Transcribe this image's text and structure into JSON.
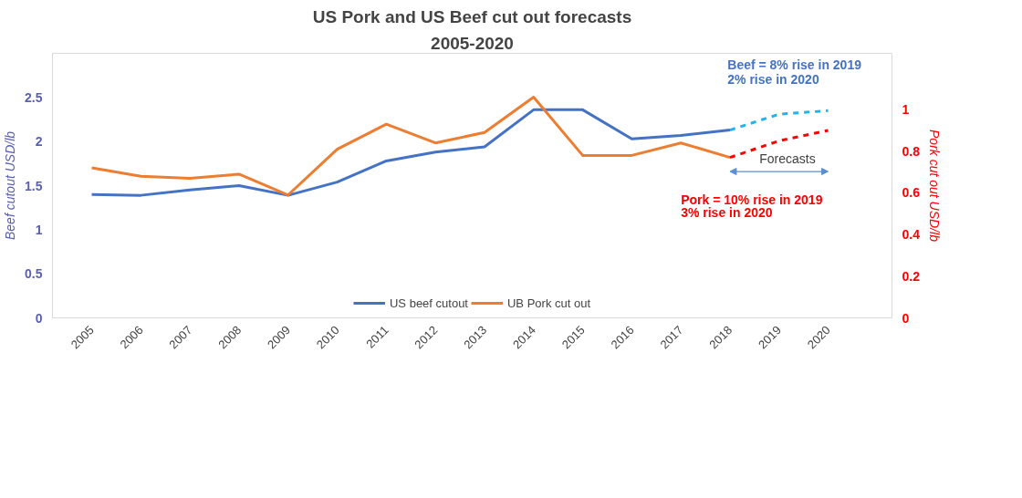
{
  "chart_data": {
    "type": "line",
    "title": "US Pork and US Beef cut out forecasts",
    "subtitle": "2005-2020",
    "ylabel": "Beef cutout USD/lb",
    "y2label": "Pork cut out USD/lb",
    "categories": [
      "2005",
      "2006",
      "2007",
      "2008",
      "2009",
      "2010",
      "2011",
      "2012",
      "2013",
      "2014",
      "2015",
      "2016",
      "2017",
      "2018",
      "2019",
      "2020"
    ],
    "series": [
      {
        "name": "US beef cutout",
        "color": "#4472c4",
        "values": [
          1.4,
          1.39,
          1.45,
          1.5,
          1.39,
          1.54,
          1.78,
          1.88,
          1.94,
          2.36,
          2.36,
          2.03,
          2.07,
          2.13,
          null,
          null
        ]
      },
      {
        "name": "UB Pork cut out",
        "color": "#ed7d31",
        "axis": "y2",
        "values": [
          0.72,
          0.68,
          0.67,
          0.69,
          0.59,
          0.81,
          0.93,
          0.84,
          0.89,
          1.06,
          0.78,
          0.78,
          0.84,
          0.77,
          null,
          null
        ]
      },
      {
        "color": "#1fb4f0",
        "line_style": "dashed",
        "values": [
          null,
          null,
          null,
          null,
          null,
          null,
          null,
          null,
          null,
          null,
          null,
          null,
          null,
          2.13,
          2.31,
          2.35
        ]
      },
      {
        "color": "#ff0000",
        "line_style": "dashed",
        "axis": "y2",
        "values": [
          null,
          null,
          null,
          null,
          null,
          null,
          null,
          null,
          null,
          null,
          null,
          null,
          null,
          0.77,
          0.85,
          0.9
        ]
      }
    ],
    "ylim": [
      0,
      3.0
    ],
    "yticks": [
      0,
      0.5,
      1,
      1.5,
      2,
      2.5
    ],
    "y2lim": [
      0,
      1.27
    ],
    "y2ticks": [
      0,
      0.2,
      0.4,
      0.6,
      0.8,
      1
    ],
    "annotations": [
      "Beef  = 8% rise in 2019",
      "2% rise in 2020",
      "Pork = 10% rise in 2019",
      "3% rise in 2020",
      "Forecasts"
    ],
    "legend": "bottom",
    "grid": false
  }
}
